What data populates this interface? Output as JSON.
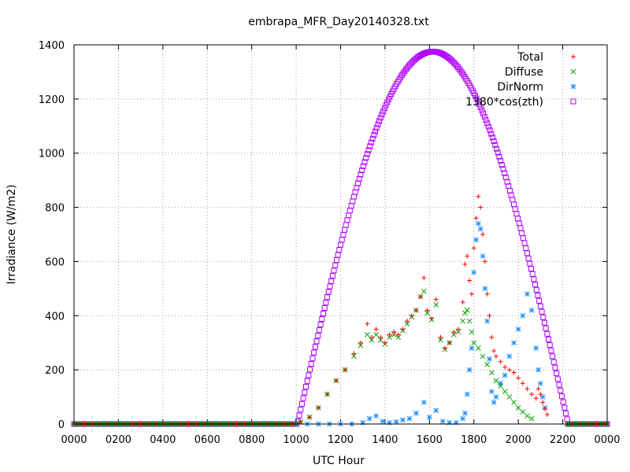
{
  "chart_data": {
    "type": "scatter",
    "title": "embrapa_MFR_Day20140328.txt",
    "xlabel": "UTC Hour",
    "ylabel": "Irradiance (W/m2)",
    "xlim": [
      0,
      24
    ],
    "ylim": [
      0,
      1400
    ],
    "x_ticks": [
      0,
      2,
      4,
      6,
      8,
      10,
      12,
      14,
      16,
      18,
      20,
      22,
      24
    ],
    "x_tick_labels": [
      "0000",
      "0200",
      "0400",
      "0600",
      "0800",
      "1000",
      "1200",
      "1400",
      "1600",
      "1800",
      "2000",
      "2200",
      "0000"
    ],
    "y_ticks": [
      0,
      200,
      400,
      600,
      800,
      1000,
      1200,
      1400
    ],
    "y_tick_labels": [
      "0",
      "200",
      "400",
      "600",
      "800",
      "1000",
      "1200",
      "1400"
    ],
    "grid": true,
    "legend_position": "top-right",
    "series": [
      {
        "name": "Total",
        "color": "#ff0000",
        "marker": "plus",
        "points": [
          [
            10.2,
            8
          ],
          [
            10.6,
            25
          ],
          [
            11.0,
            60
          ],
          [
            11.4,
            110
          ],
          [
            11.8,
            160
          ],
          [
            12.2,
            200
          ],
          [
            12.6,
            260
          ],
          [
            12.9,
            300
          ],
          [
            13.2,
            370
          ],
          [
            13.4,
            320
          ],
          [
            13.6,
            350
          ],
          [
            13.8,
            320
          ],
          [
            14.0,
            300
          ],
          [
            14.2,
            330
          ],
          [
            14.4,
            340
          ],
          [
            14.6,
            330
          ],
          [
            14.8,
            350
          ],
          [
            15.0,
            380
          ],
          [
            15.2,
            400
          ],
          [
            15.4,
            420
          ],
          [
            15.6,
            470
          ],
          [
            15.75,
            540
          ],
          [
            15.9,
            420
          ],
          [
            16.1,
            390
          ],
          [
            16.3,
            460
          ],
          [
            16.5,
            320
          ],
          [
            16.7,
            280
          ],
          [
            16.9,
            300
          ],
          [
            17.1,
            340
          ],
          [
            17.3,
            350
          ],
          [
            17.5,
            450
          ],
          [
            17.6,
            590
          ],
          [
            17.7,
            620
          ],
          [
            17.8,
            530
          ],
          [
            17.9,
            480
          ],
          [
            18.0,
            650
          ],
          [
            18.1,
            760
          ],
          [
            18.2,
            840
          ],
          [
            18.3,
            800
          ],
          [
            18.4,
            700
          ],
          [
            18.5,
            600
          ],
          [
            18.6,
            480
          ],
          [
            18.7,
            400
          ],
          [
            18.8,
            320
          ],
          [
            18.9,
            270
          ],
          [
            19.0,
            250
          ],
          [
            19.2,
            230
          ],
          [
            19.4,
            210
          ],
          [
            19.6,
            200
          ],
          [
            19.8,
            190
          ],
          [
            20.0,
            170
          ],
          [
            20.2,
            150
          ],
          [
            20.4,
            130
          ],
          [
            20.6,
            110
          ],
          [
            20.8,
            95
          ],
          [
            20.9,
            130
          ],
          [
            21.0,
            110
          ],
          [
            21.1,
            80
          ],
          [
            21.2,
            55
          ],
          [
            21.3,
            35
          ]
        ]
      },
      {
        "name": "Diffuse",
        "color": "#00a000",
        "marker": "cross",
        "points": [
          [
            10.2,
            8
          ],
          [
            10.6,
            25
          ],
          [
            11.0,
            60
          ],
          [
            11.4,
            110
          ],
          [
            11.8,
            160
          ],
          [
            12.2,
            200
          ],
          [
            12.6,
            250
          ],
          [
            12.9,
            290
          ],
          [
            13.2,
            330
          ],
          [
            13.4,
            310
          ],
          [
            13.6,
            330
          ],
          [
            13.8,
            310
          ],
          [
            14.0,
            295
          ],
          [
            14.2,
            320
          ],
          [
            14.4,
            330
          ],
          [
            14.6,
            320
          ],
          [
            14.8,
            345
          ],
          [
            15.0,
            370
          ],
          [
            15.2,
            395
          ],
          [
            15.4,
            420
          ],
          [
            15.6,
            470
          ],
          [
            15.75,
            490
          ],
          [
            15.9,
            410
          ],
          [
            16.1,
            385
          ],
          [
            16.3,
            440
          ],
          [
            16.5,
            310
          ],
          [
            16.7,
            275
          ],
          [
            16.9,
            300
          ],
          [
            17.1,
            330
          ],
          [
            17.3,
            340
          ],
          [
            17.5,
            380
          ],
          [
            17.6,
            410
          ],
          [
            17.7,
            420
          ],
          [
            17.8,
            380
          ],
          [
            17.9,
            340
          ],
          [
            18.0,
            300
          ],
          [
            18.2,
            280
          ],
          [
            18.4,
            250
          ],
          [
            18.6,
            220
          ],
          [
            18.8,
            190
          ],
          [
            19.0,
            160
          ],
          [
            19.2,
            140
          ],
          [
            19.4,
            120
          ],
          [
            19.6,
            100
          ],
          [
            19.8,
            80
          ],
          [
            20.0,
            60
          ],
          [
            20.2,
            45
          ],
          [
            20.4,
            30
          ],
          [
            20.6,
            20
          ]
        ]
      },
      {
        "name": "DirNorm",
        "color": "#1e90ff",
        "marker": "star",
        "points": [
          [
            10.0,
            0
          ],
          [
            10.5,
            0
          ],
          [
            11.0,
            0
          ],
          [
            11.5,
            0
          ],
          [
            12.0,
            0
          ],
          [
            12.5,
            0
          ],
          [
            13.0,
            5
          ],
          [
            13.3,
            20
          ],
          [
            13.6,
            30
          ],
          [
            13.9,
            10
          ],
          [
            14.2,
            5
          ],
          [
            14.5,
            8
          ],
          [
            14.8,
            15
          ],
          [
            15.1,
            20
          ],
          [
            15.4,
            40
          ],
          [
            15.75,
            80
          ],
          [
            16.0,
            25
          ],
          [
            16.3,
            50
          ],
          [
            16.6,
            10
          ],
          [
            16.9,
            5
          ],
          [
            17.2,
            5
          ],
          [
            17.5,
            20
          ],
          [
            17.6,
            40
          ],
          [
            17.7,
            110
          ],
          [
            17.8,
            200
          ],
          [
            17.9,
            280
          ],
          [
            18.0,
            560
          ],
          [
            18.1,
            680
          ],
          [
            18.2,
            740
          ],
          [
            18.3,
            720
          ],
          [
            18.4,
            620
          ],
          [
            18.5,
            500
          ],
          [
            18.6,
            380
          ],
          [
            18.7,
            240
          ],
          [
            18.8,
            120
          ],
          [
            18.9,
            80
          ],
          [
            19.0,
            100
          ],
          [
            19.2,
            150
          ],
          [
            19.4,
            180
          ],
          [
            19.6,
            250
          ],
          [
            19.8,
            300
          ],
          [
            20.0,
            350
          ],
          [
            20.2,
            400
          ],
          [
            20.4,
            480
          ],
          [
            20.6,
            420
          ],
          [
            20.8,
            280
          ],
          [
            20.9,
            200
          ],
          [
            21.0,
            150
          ],
          [
            21.1,
            100
          ],
          [
            21.2,
            60
          ]
        ]
      },
      {
        "name": "1380*cos(zth)",
        "color": "#b000ff",
        "marker": "square",
        "points": []
      }
    ]
  }
}
